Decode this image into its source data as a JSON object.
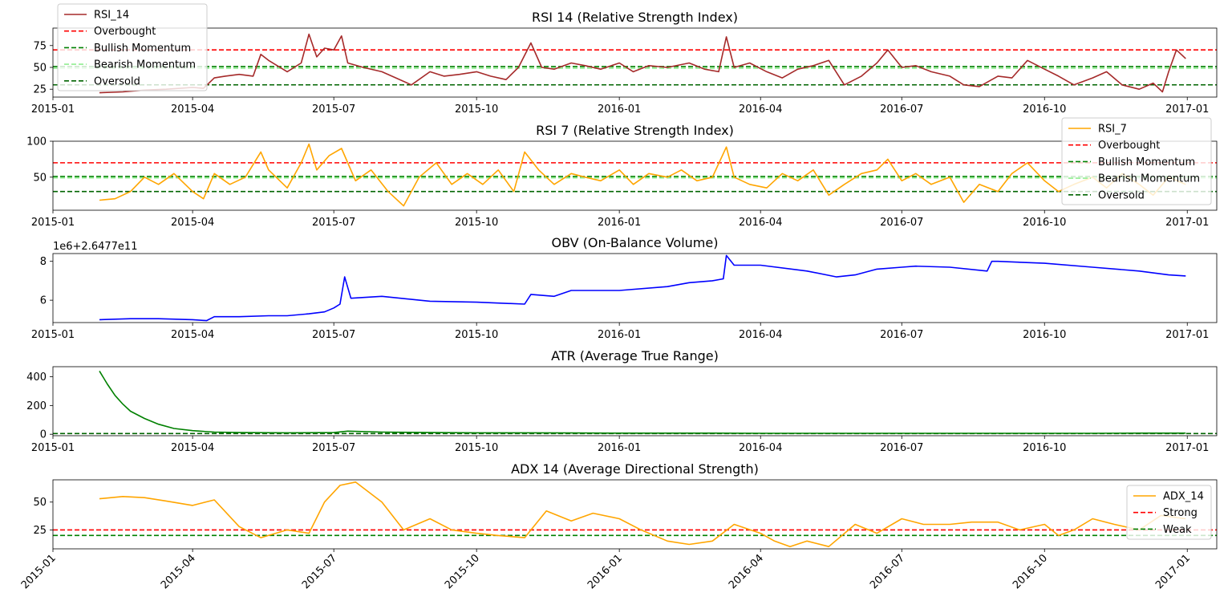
{
  "chart_data": [
    {
      "type": "line",
      "title": "RSI 14 (Relative Strength Index)",
      "xlabel": "",
      "ylabel": "",
      "x_domain": [
        "2015-01-01",
        "2017-01-20"
      ],
      "x_ticks": [
        "2015-01",
        "2015-04",
        "2015-07",
        "2015-10",
        "2016-01",
        "2016-04",
        "2016-07",
        "2016-10",
        "2017-01"
      ],
      "y_ticks": [
        25,
        50,
        75
      ],
      "ylim": [
        16,
        95
      ],
      "legend_position": "top-left",
      "series": [
        {
          "name": "RSI_14",
          "color": "#a52a2a",
          "x": [
            "2015-01-31",
            "2015-02-15",
            "2015-03-01",
            "2015-03-15",
            "2015-04-01",
            "2015-04-08",
            "2015-04-15",
            "2015-04-22",
            "2015-05-01",
            "2015-05-10",
            "2015-05-15",
            "2015-05-20",
            "2015-06-01",
            "2015-06-10",
            "2015-06-15",
            "2015-06-20",
            "2015-06-25",
            "2015-07-01",
            "2015-07-06",
            "2015-07-10",
            "2015-07-20",
            "2015-08-01",
            "2015-08-10",
            "2015-08-20",
            "2015-09-01",
            "2015-09-10",
            "2015-09-20",
            "2015-10-01",
            "2015-10-10",
            "2015-10-20",
            "2015-10-28",
            "2015-11-05",
            "2015-11-12",
            "2015-11-20",
            "2015-12-01",
            "2015-12-10",
            "2015-12-20",
            "2016-01-01",
            "2016-01-10",
            "2016-01-20",
            "2016-02-01",
            "2016-02-15",
            "2016-02-25",
            "2016-03-05",
            "2016-03-10",
            "2016-03-15",
            "2016-03-25",
            "2016-04-05",
            "2016-04-15",
            "2016-04-25",
            "2016-05-05",
            "2016-05-15",
            "2016-05-25",
            "2016-06-05",
            "2016-06-15",
            "2016-06-22",
            "2016-07-01",
            "2016-07-10",
            "2016-07-20",
            "2016-08-01",
            "2016-08-10",
            "2016-08-20",
            "2016-09-01",
            "2016-09-10",
            "2016-09-20",
            "2016-10-01",
            "2016-10-10",
            "2016-10-20",
            "2016-11-01",
            "2016-11-10",
            "2016-11-20",
            "2016-12-01",
            "2016-12-10",
            "2016-12-16",
            "2016-12-20",
            "2016-12-25",
            "2016-12-31"
          ],
          "values": [
            21,
            22,
            24,
            25,
            27,
            26,
            38,
            40,
            42,
            40,
            65,
            58,
            45,
            55,
            88,
            62,
            72,
            70,
            86,
            55,
            50,
            45,
            38,
            30,
            45,
            40,
            42,
            45,
            40,
            36,
            50,
            78,
            50,
            48,
            55,
            52,
            48,
            55,
            45,
            52,
            50,
            55,
            48,
            45,
            85,
            50,
            55,
            45,
            38,
            48,
            52,
            58,
            30,
            40,
            55,
            70,
            50,
            52,
            45,
            40,
            30,
            28,
            40,
            38,
            58,
            48,
            40,
            30,
            38,
            45,
            30,
            25,
            32,
            22,
            45,
            70,
            60
          ]
        }
      ],
      "hlines": [
        {
          "name": "Overbought",
          "y": 70,
          "color": "#ff0000"
        },
        {
          "name": "Bullish Momentum",
          "y": 51,
          "color": "#008000"
        },
        {
          "name": "Bearish Momentum",
          "y": 49,
          "color": "#90ee90"
        },
        {
          "name": "Oversold",
          "y": 30,
          "color": "#006400"
        }
      ]
    },
    {
      "type": "line",
      "title": "RSI 7 (Relative Strength Index)",
      "xlabel": "",
      "ylabel": "",
      "x_domain": [
        "2015-01-01",
        "2017-01-20"
      ],
      "x_ticks": [
        "2015-01",
        "2015-04",
        "2015-07",
        "2015-10",
        "2016-01",
        "2016-04",
        "2016-07",
        "2016-10",
        "2017-01"
      ],
      "y_ticks": [
        50,
        100
      ],
      "ylim": [
        4,
        100
      ],
      "legend_position": "top-right",
      "series": [
        {
          "name": "RSI_7",
          "color": "#ffa500",
          "x": [
            "2015-01-31",
            "2015-02-10",
            "2015-02-20",
            "2015-03-01",
            "2015-03-10",
            "2015-03-20",
            "2015-04-01",
            "2015-04-08",
            "2015-04-15",
            "2015-04-25",
            "2015-05-05",
            "2015-05-15",
            "2015-05-20",
            "2015-06-01",
            "2015-06-10",
            "2015-06-15",
            "2015-06-20",
            "2015-06-28",
            "2015-07-06",
            "2015-07-15",
            "2015-07-25",
            "2015-08-05",
            "2015-08-15",
            "2015-08-25",
            "2015-09-05",
            "2015-09-15",
            "2015-09-25",
            "2015-10-05",
            "2015-10-15",
            "2015-10-25",
            "2015-11-01",
            "2015-11-10",
            "2015-11-20",
            "2015-12-01",
            "2015-12-10",
            "2015-12-20",
            "2016-01-01",
            "2016-01-10",
            "2016-01-20",
            "2016-02-01",
            "2016-02-10",
            "2016-02-20",
            "2016-03-01",
            "2016-03-10",
            "2016-03-15",
            "2016-03-25",
            "2016-04-05",
            "2016-04-15",
            "2016-04-25",
            "2016-05-05",
            "2016-05-15",
            "2016-05-25",
            "2016-06-05",
            "2016-06-15",
            "2016-06-22",
            "2016-07-01",
            "2016-07-10",
            "2016-07-20",
            "2016-08-01",
            "2016-08-10",
            "2016-08-20",
            "2016-09-01",
            "2016-09-10",
            "2016-09-20",
            "2016-10-01",
            "2016-10-10",
            "2016-10-20",
            "2016-11-01",
            "2016-11-10",
            "2016-11-20",
            "2016-12-01",
            "2016-12-10",
            "2016-12-20",
            "2016-12-31"
          ],
          "values": [
            18,
            20,
            30,
            50,
            40,
            55,
            30,
            20,
            55,
            40,
            50,
            85,
            60,
            35,
            70,
            96,
            60,
            80,
            90,
            45,
            60,
            30,
            10,
            50,
            70,
            40,
            55,
            40,
            60,
            30,
            85,
            60,
            40,
            55,
            50,
            45,
            60,
            40,
            55,
            50,
            60,
            45,
            50,
            92,
            50,
            40,
            35,
            55,
            45,
            60,
            25,
            40,
            55,
            60,
            75,
            45,
            55,
            40,
            50,
            15,
            40,
            30,
            55,
            70,
            45,
            30,
            40,
            50,
            35,
            55,
            40,
            25,
            50,
            40
          ]
        }
      ],
      "hlines": [
        {
          "name": "Overbought",
          "y": 70,
          "color": "#ff0000"
        },
        {
          "name": "Bullish Momentum",
          "y": 51,
          "color": "#008000"
        },
        {
          "name": "Bearish Momentum",
          "y": 49,
          "color": "#90ee90"
        },
        {
          "name": "Oversold",
          "y": 30,
          "color": "#006400"
        }
      ]
    },
    {
      "type": "line",
      "title": "OBV (On-Balance Volume)",
      "xlabel": "",
      "ylabel": "",
      "offset_text": "1e6+2.6477e11",
      "x_domain": [
        "2015-01-01",
        "2017-01-20"
      ],
      "x_ticks": [
        "2015-01",
        "2015-04",
        "2015-07",
        "2015-10",
        "2016-01",
        "2016-04",
        "2016-07",
        "2016-10",
        "2017-01"
      ],
      "y_ticks": [
        6,
        8
      ],
      "ylim": [
        4.85,
        8.4
      ],
      "legend_position": "none",
      "series": [
        {
          "name": "",
          "color": "#0000ff",
          "x": [
            "2015-01-31",
            "2015-02-20",
            "2015-03-10",
            "2015-04-01",
            "2015-04-10",
            "2015-04-15",
            "2015-05-01",
            "2015-05-20",
            "2015-06-01",
            "2015-06-15",
            "2015-06-25",
            "2015-07-01",
            "2015-07-05",
            "2015-07-08",
            "2015-07-12",
            "2015-08-01",
            "2015-09-01",
            "2015-10-01",
            "2015-11-01",
            "2015-11-05",
            "2015-11-20",
            "2015-12-01",
            "2016-01-01",
            "2016-02-01",
            "2016-02-15",
            "2016-03-01",
            "2016-03-08",
            "2016-03-10",
            "2016-03-15",
            "2016-04-01",
            "2016-05-01",
            "2016-05-20",
            "2016-06-01",
            "2016-06-15",
            "2016-07-01",
            "2016-07-10",
            "2016-08-01",
            "2016-08-25",
            "2016-08-28",
            "2016-09-01",
            "2016-10-01",
            "2016-11-01",
            "2016-12-01",
            "2016-12-20",
            "2016-12-31"
          ],
          "values": [
            5.0,
            5.05,
            5.05,
            5.0,
            4.95,
            5.15,
            5.15,
            5.2,
            5.2,
            5.3,
            5.4,
            5.6,
            5.8,
            7.2,
            6.1,
            6.2,
            5.95,
            5.9,
            5.8,
            6.3,
            6.2,
            6.5,
            6.5,
            6.7,
            6.9,
            7.0,
            7.1,
            8.3,
            7.8,
            7.8,
            7.5,
            7.2,
            7.3,
            7.6,
            7.7,
            7.75,
            7.7,
            7.5,
            8.0,
            8.0,
            7.9,
            7.7,
            7.5,
            7.3,
            7.25
          ]
        }
      ],
      "hlines": []
    },
    {
      "type": "line",
      "title": "ATR (Average True Range)",
      "xlabel": "",
      "ylabel": "",
      "x_domain": [
        "2015-01-01",
        "2017-01-20"
      ],
      "x_ticks": [
        "2015-01",
        "2015-04",
        "2015-07",
        "2015-10",
        "2016-01",
        "2016-04",
        "2016-07",
        "2016-10",
        "2017-01"
      ],
      "y_ticks": [
        0,
        200,
        400
      ],
      "ylim": [
        -10,
        470
      ],
      "legend_position": "none",
      "series": [
        {
          "name": "",
          "color": "#008000",
          "x": [
            "2015-01-31",
            "2015-02-05",
            "2015-02-10",
            "2015-02-15",
            "2015-02-20",
            "2015-03-01",
            "2015-03-10",
            "2015-03-20",
            "2015-04-01",
            "2015-04-15",
            "2015-05-01",
            "2015-06-01",
            "2015-07-01",
            "2015-07-10",
            "2015-08-01",
            "2015-09-01",
            "2015-10-01",
            "2015-11-01",
            "2015-12-01",
            "2016-01-01",
            "2016-02-01",
            "2016-03-01",
            "2016-04-01",
            "2016-05-01",
            "2016-06-01",
            "2016-07-01",
            "2016-08-01",
            "2016-09-01",
            "2016-10-01",
            "2016-11-01",
            "2016-12-01",
            "2016-12-31"
          ],
          "values": [
            440,
            350,
            270,
            210,
            160,
            110,
            70,
            40,
            25,
            15,
            12,
            10,
            12,
            22,
            15,
            12,
            10,
            10,
            9,
            8,
            8,
            8,
            7,
            7,
            7,
            7,
            7,
            7,
            7,
            7,
            8,
            8
          ]
        }
      ],
      "hlines": [
        {
          "name": "",
          "y": 5,
          "color": "#006400"
        }
      ]
    },
    {
      "type": "line",
      "title": "ADX 14 (Average Directional Strength)",
      "xlabel": "",
      "ylabel": "",
      "x_domain": [
        "2015-01-01",
        "2017-01-20"
      ],
      "x_ticks": [
        "2015-01",
        "2015-04",
        "2015-07",
        "2015-10",
        "2016-01",
        "2016-04",
        "2016-07",
        "2016-10",
        "2017-01"
      ],
      "y_ticks": [
        25,
        50
      ],
      "ylim": [
        8,
        70
      ],
      "legend_position": "right",
      "series": [
        {
          "name": "ADX_14",
          "color": "#ffa500",
          "x": [
            "2015-01-31",
            "2015-02-15",
            "2015-03-01",
            "2015-03-15",
            "2015-04-01",
            "2015-04-15",
            "2015-05-01",
            "2015-05-15",
            "2015-06-01",
            "2015-06-15",
            "2015-06-25",
            "2015-07-05",
            "2015-07-15",
            "2015-08-01",
            "2015-08-15",
            "2015-09-01",
            "2015-09-15",
            "2015-10-01",
            "2015-10-15",
            "2015-11-01",
            "2015-11-15",
            "2015-12-01",
            "2015-12-15",
            "2016-01-01",
            "2016-01-15",
            "2016-02-01",
            "2016-02-15",
            "2016-03-01",
            "2016-03-15",
            "2016-04-01",
            "2016-04-10",
            "2016-04-20",
            "2016-05-01",
            "2016-05-15",
            "2016-06-01",
            "2016-06-15",
            "2016-07-01",
            "2016-07-15",
            "2016-08-01",
            "2016-08-15",
            "2016-09-01",
            "2016-09-15",
            "2016-10-01",
            "2016-10-10",
            "2016-10-20",
            "2016-11-01",
            "2016-11-15",
            "2016-12-01",
            "2016-12-15",
            "2016-12-31"
          ],
          "values": [
            53,
            55,
            54,
            51,
            47,
            52,
            28,
            18,
            25,
            22,
            50,
            65,
            68,
            50,
            25,
            35,
            25,
            22,
            20,
            18,
            42,
            33,
            40,
            35,
            25,
            15,
            12,
            15,
            30,
            22,
            15,
            10,
            15,
            10,
            30,
            22,
            35,
            30,
            30,
            32,
            32,
            25,
            30,
            20,
            25,
            35,
            30,
            25,
            38,
            35
          ]
        }
      ],
      "hlines": [
        {
          "name": "Strong",
          "y": 25,
          "color": "#ff0000"
        },
        {
          "name": "Weak",
          "y": 20,
          "color": "#008000"
        }
      ]
    }
  ]
}
